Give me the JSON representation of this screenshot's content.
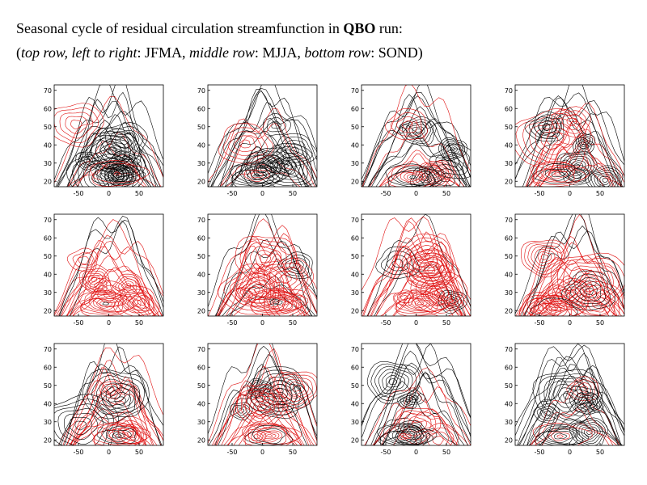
{
  "caption": {
    "line1_prefix": "Seasonal cycle of residual circulation streamfunction in ",
    "line1_bold": "QBO",
    "line1_suffix": " run:",
    "open_paren": "(",
    "top_label": "top row, left to right",
    "top_value": ": JFMA, ",
    "middle_label": "middle row",
    "middle_value": ": MJJA, ",
    "bottom_label": "bottom row",
    "bottom_value": ": SOND)"
  },
  "colors": {
    "positive_contour": "#000000",
    "negative_contour": "#e01010",
    "axis": "#000000"
  },
  "chart_data": {
    "type": "contour",
    "rows": 3,
    "cols": 4,
    "x_range": [
      -90,
      90
    ],
    "y_range": [
      17,
      73
    ],
    "grid": false,
    "panels": [
      {
        "xticks": [
          "-50",
          "0",
          "50"
        ],
        "yticks": [
          "20",
          "30",
          "40",
          "50",
          "60",
          "70"
        ]
      },
      {
        "xticks": [
          "-50",
          "0",
          "50"
        ],
        "yticks": [
          "20",
          "30",
          "40",
          "50",
          "60",
          "70"
        ]
      },
      {
        "xticks": [
          "-50",
          "0",
          "50"
        ],
        "yticks": [
          "20",
          "30",
          "40",
          "50",
          "60",
          "70"
        ]
      },
      {
        "xticks": [
          "-50",
          "0",
          "50"
        ],
        "yticks": [
          "20",
          "30",
          "40",
          "50",
          "60",
          "70"
        ]
      },
      {
        "xticks": [
          "-50",
          "0",
          "50"
        ],
        "yticks": [
          "20",
          "30",
          "40",
          "50",
          "60",
          "70"
        ]
      },
      {
        "xticks": [
          "-50",
          "0",
          "50"
        ],
        "yticks": [
          "20",
          "30",
          "40",
          "50",
          "60",
          "70"
        ]
      },
      {
        "xticks": [
          "-50",
          "0",
          "50"
        ],
        "yticks": [
          "20",
          "30",
          "40",
          "50",
          "60",
          "70"
        ]
      },
      {
        "xticks": [
          "-50",
          "0",
          "50"
        ],
        "yticks": [
          "20",
          "30",
          "40",
          "50",
          "60",
          "70"
        ]
      },
      {
        "xticks": [
          "-50",
          "0",
          "50"
        ],
        "yticks": [
          "20",
          "30",
          "40",
          "50",
          "60",
          "70"
        ]
      },
      {
        "xticks": [
          "-50",
          "0",
          "50"
        ],
        "yticks": [
          "20",
          "30",
          "40",
          "50",
          "60",
          "70"
        ]
      },
      {
        "xticks": [
          "-50",
          "0",
          "50"
        ],
        "yticks": [
          "20",
          "30",
          "40",
          "50",
          "60",
          "70"
        ]
      },
      {
        "xticks": [
          "-50",
          "0",
          "50"
        ],
        "yticks": [
          "20",
          "30",
          "40",
          "50",
          "60",
          "70"
        ]
      }
    ]
  }
}
